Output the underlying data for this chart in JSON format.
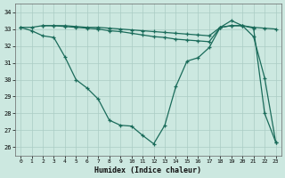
{
  "xlabel": "Humidex (Indice chaleur)",
  "background_color": "#cce8e0",
  "grid_color": "#aaccc4",
  "line_color": "#1a6b5a",
  "xlim": [
    -0.5,
    23.5
  ],
  "ylim": [
    25.5,
    34.5
  ],
  "yticks": [
    26,
    27,
    28,
    29,
    30,
    31,
    32,
    33,
    34
  ],
  "xticks": [
    0,
    1,
    2,
    3,
    4,
    5,
    6,
    7,
    8,
    9,
    10,
    11,
    12,
    13,
    14,
    15,
    16,
    17,
    18,
    19,
    20,
    21,
    22,
    23
  ],
  "line1_x": [
    0,
    1,
    2,
    3,
    4,
    5,
    6,
    7,
    8,
    9,
    10,
    11,
    12,
    13,
    14,
    15,
    16,
    17,
    18,
    19,
    20,
    21,
    22,
    23
  ],
  "line1_y": [
    33.1,
    33.1,
    33.2,
    33.2,
    33.2,
    33.15,
    33.1,
    33.1,
    33.05,
    33.0,
    32.95,
    32.9,
    32.85,
    32.8,
    32.75,
    32.7,
    32.65,
    32.6,
    33.1,
    33.2,
    33.2,
    33.1,
    33.05,
    33.0
  ],
  "line2_x": [
    0,
    1,
    2,
    3,
    4,
    5,
    6,
    7,
    8,
    9,
    10,
    11,
    12,
    13,
    14,
    15,
    16,
    17,
    18,
    19,
    20,
    21,
    22,
    23
  ],
  "line2_y": [
    33.1,
    32.9,
    32.6,
    32.5,
    31.35,
    30.0,
    29.5,
    28.85,
    27.6,
    27.3,
    27.25,
    26.7,
    26.2,
    27.3,
    29.6,
    31.1,
    31.3,
    31.9,
    33.1,
    33.5,
    33.2,
    32.55,
    30.1,
    26.3
  ],
  "line3_x": [
    2,
    3,
    4,
    5,
    6,
    7,
    8,
    9,
    10,
    11,
    12,
    13,
    14,
    15,
    16,
    17,
    18,
    19,
    20,
    21,
    22,
    23
  ],
  "line3_y": [
    33.2,
    33.2,
    33.15,
    33.1,
    33.05,
    33.0,
    32.9,
    32.85,
    32.75,
    32.65,
    32.55,
    32.5,
    32.4,
    32.35,
    32.3,
    32.25,
    33.1,
    33.2,
    33.2,
    33.05,
    28.0,
    26.3
  ]
}
